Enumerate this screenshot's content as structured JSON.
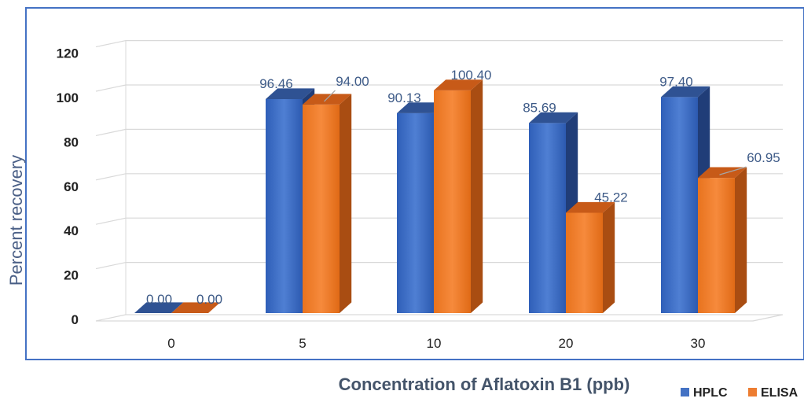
{
  "chart_data": {
    "type": "bar",
    "categories": [
      "0",
      "5",
      "10",
      "20",
      "30"
    ],
    "series": [
      {
        "name": "HPLC",
        "values": [
          0.0,
          96.46,
          90.13,
          85.69,
          97.4
        ],
        "labels": [
          "0.00",
          "96.46",
          "90.13",
          "85.69",
          "97.40"
        ]
      },
      {
        "name": "ELISA",
        "values": [
          0.0,
          94.0,
          100.4,
          45.22,
          60.95
        ],
        "labels": [
          "0.00",
          "94.00",
          "100.40",
          "45.22",
          "60.95"
        ]
      }
    ],
    "yticks": [
      "0",
      "20",
      "40",
      "60",
      "80",
      "100",
      "120"
    ],
    "xlabel": "Concentration of Aflatoxin B1 (ppb)",
    "ylabel": "Percent recovery",
    "ylim": [
      0,
      120
    ],
    "grid": true,
    "legend_position": "bottom-right",
    "colors": {
      "HPLC": "#4472c4",
      "ELISA": "#ed7d31",
      "border": "#4472c4",
      "grid": "#d9d9d9"
    }
  }
}
